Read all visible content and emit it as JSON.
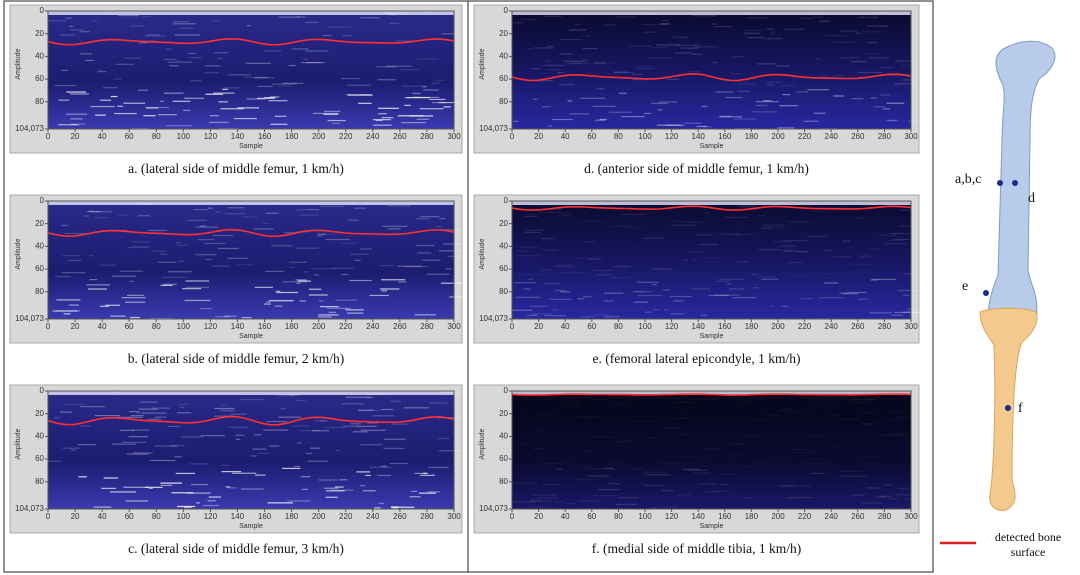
{
  "panels": [
    {
      "caption": "a. (lateral side of middle femur, 1 km/h)",
      "y_label": "Amplitude",
      "x_label": "Sample",
      "y_ticks": [
        "0",
        "20",
        "40",
        "60",
        "80",
        "104,073"
      ],
      "x_ticks": [
        "0",
        "20",
        "40",
        "60",
        "80",
        "100",
        "120",
        "140",
        "160",
        "180",
        "200",
        "220",
        "240",
        "260",
        "280",
        "300"
      ]
    },
    {
      "caption": "b. (lateral side of middle femur, 2 km/h)",
      "y_label": "Amplitude",
      "x_label": "Sample",
      "y_ticks": [
        "0",
        "20",
        "40",
        "60",
        "80",
        "104,073"
      ],
      "x_ticks": [
        "0",
        "20",
        "40",
        "60",
        "80",
        "100",
        "120",
        "140",
        "160",
        "180",
        "200",
        "220",
        "240",
        "260",
        "280",
        "300"
      ]
    },
    {
      "caption": "c. (lateral side of middle femur, 3 km/h)",
      "y_label": "Amplitude",
      "x_label": "Sample",
      "y_ticks": [
        "0",
        "20",
        "40",
        "60",
        "80",
        "104,073"
      ],
      "x_ticks": [
        "0",
        "20",
        "40",
        "60",
        "80",
        "100",
        "120",
        "140",
        "160",
        "180",
        "200",
        "220",
        "240",
        "260",
        "280",
        "300"
      ]
    },
    {
      "caption": "d. (anterior side of middle femur, 1 km/h)",
      "y_label": "Amplitude",
      "x_label": "Sample",
      "y_ticks": [
        "0",
        "20",
        "40",
        "60",
        "80",
        "104,073"
      ],
      "x_ticks": [
        "0",
        "20",
        "40",
        "60",
        "80",
        "100",
        "120",
        "140",
        "160",
        "180",
        "200",
        "220",
        "240",
        "260",
        "280",
        "300"
      ]
    },
    {
      "caption": "e. (femoral lateral epicondyle, 1 km/h)",
      "y_label": "Amplitude",
      "x_label": "Sample",
      "y_ticks": [
        "0",
        "20",
        "40",
        "60",
        "80",
        "104,073"
      ],
      "x_ticks": [
        "0",
        "20",
        "40",
        "60",
        "80",
        "100",
        "120",
        "140",
        "160",
        "180",
        "200",
        "220",
        "240",
        "260",
        "280",
        "300"
      ]
    },
    {
      "caption": "f. (medial side of middle tibia, 1 km/h)",
      "y_label": "Amplitude",
      "x_label": "Sample",
      "y_ticks": [
        "0",
        "20",
        "40",
        "60",
        "80",
        "104,073"
      ],
      "x_ticks": [
        "0",
        "20",
        "40",
        "60",
        "80",
        "100",
        "120",
        "140",
        "160",
        "180",
        "200",
        "220",
        "240",
        "260",
        "280",
        "300"
      ]
    }
  ],
  "diagram": {
    "labels": [
      "a,b,c",
      "d",
      "e",
      "f"
    ],
    "legend": [
      "detected bone",
      "surface"
    ]
  }
}
